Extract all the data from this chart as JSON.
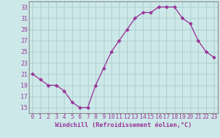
{
  "x": [
    0,
    1,
    2,
    3,
    4,
    5,
    6,
    7,
    8,
    9,
    10,
    11,
    12,
    13,
    14,
    15,
    16,
    17,
    18,
    19,
    20,
    21,
    22,
    23
  ],
  "y": [
    21,
    20,
    19,
    19,
    18,
    16,
    15,
    15,
    19,
    22,
    25,
    27,
    29,
    31,
    32,
    32,
    33,
    33,
    33,
    31,
    30,
    27,
    25,
    24
  ],
  "line_color": "#993399",
  "marker": "D",
  "marker_size": 2.5,
  "bg_color": "#cce8e8",
  "grid_color": "#aacccc",
  "xlabel": "Windchill (Refroidissement éolien,°C)",
  "xlabel_fontsize": 6.5,
  "ylim": [
    14,
    34
  ],
  "yticks": [
    15,
    17,
    19,
    21,
    23,
    25,
    27,
    29,
    31,
    33
  ],
  "xlim": [
    -0.5,
    23.5
  ],
  "xticks": [
    0,
    1,
    2,
    3,
    4,
    5,
    6,
    7,
    8,
    9,
    10,
    11,
    12,
    13,
    14,
    15,
    16,
    17,
    18,
    19,
    20,
    21,
    22,
    23
  ],
  "tick_fontsize": 6,
  "line_width": 1.0,
  "tick_color": "#993399",
  "label_color": "#993399"
}
